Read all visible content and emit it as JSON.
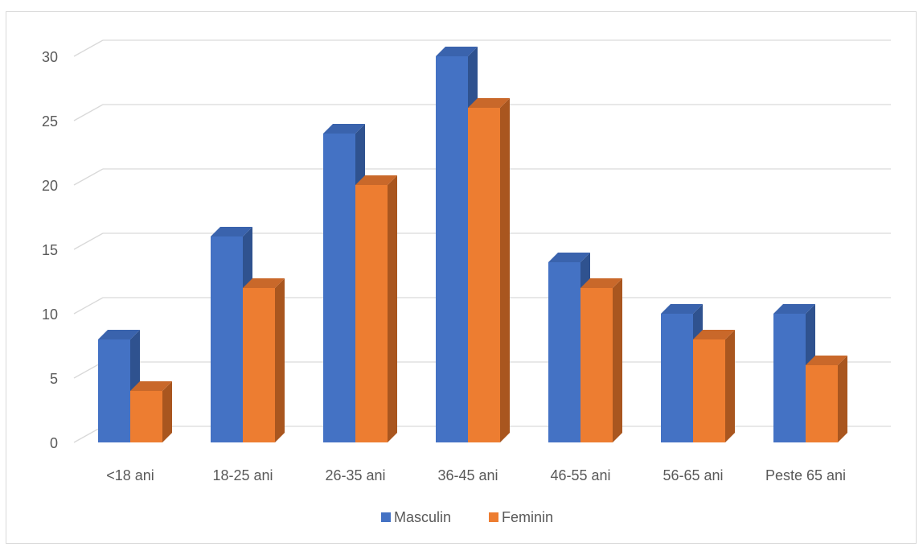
{
  "chart_data": {
    "type": "bar",
    "style": "3d-clustered-column",
    "categories": [
      "<18 ani",
      "18-25 ani",
      "26-35 ani",
      "36-45 ani",
      "46-55 ani",
      "56-65 ani",
      "Peste 65 ani"
    ],
    "series": [
      {
        "name": "Masculin",
        "values": [
          8,
          16,
          24,
          30,
          14,
          10,
          10
        ],
        "color": "#4472C4",
        "side_color": "#2F528F",
        "top_color": "#3A63AD"
      },
      {
        "name": "Feminin",
        "values": [
          4,
          12,
          20,
          26,
          12,
          8,
          6
        ],
        "color": "#ED7D31",
        "side_color": "#A9561F",
        "top_color": "#C9682A"
      }
    ],
    "y_ticks": [
      "0",
      "5",
      "10",
      "15",
      "20",
      "25",
      "30"
    ],
    "ylim": [
      0,
      30
    ],
    "grid": true,
    "legend_position": "bottom",
    "title": "",
    "xlabel": "",
    "ylabel": ""
  }
}
